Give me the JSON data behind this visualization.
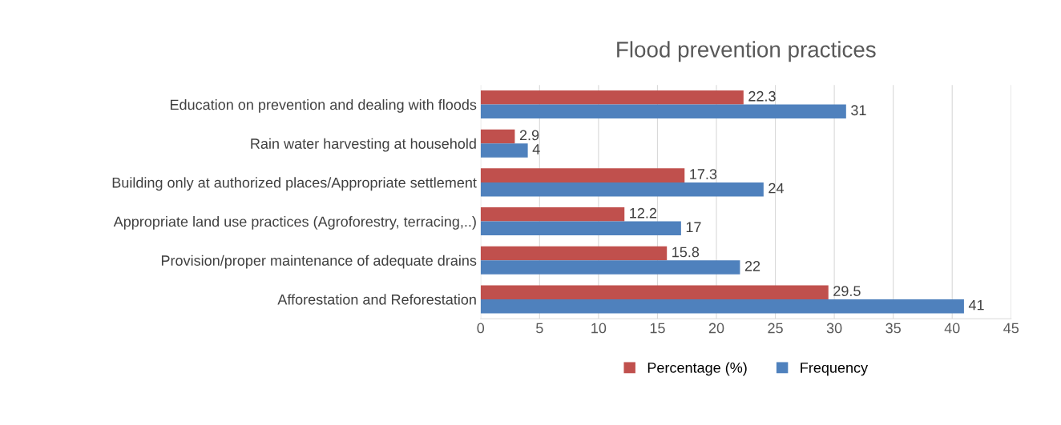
{
  "chart_data": {
    "type": "bar",
    "orientation": "horizontal",
    "title": "Flood prevention practices",
    "categories": [
      "Education on prevention and dealing with floods",
      "Rain water harvesting at household",
      "Building only at authorized places/Appropriate settlement",
      "Appropriate land use practices (Agroforestry, terracing,..)",
      "Provision/proper maintenance of adequate drains",
      "Afforestation and Reforestation"
    ],
    "series": [
      {
        "name": "Percentage (%)",
        "color": "#c0504d",
        "values": [
          22.3,
          2.9,
          17.3,
          12.2,
          15.8,
          29.5
        ]
      },
      {
        "name": "Frequency",
        "color": "#4f81bd",
        "values": [
          31,
          4,
          24,
          17,
          22,
          41
        ]
      }
    ],
    "xlim": [
      0,
      45
    ],
    "xticks": [
      0,
      5,
      10,
      15,
      20,
      25,
      30,
      35,
      40,
      45
    ],
    "grid": "x",
    "legend": "bottom",
    "data_labels": true
  }
}
